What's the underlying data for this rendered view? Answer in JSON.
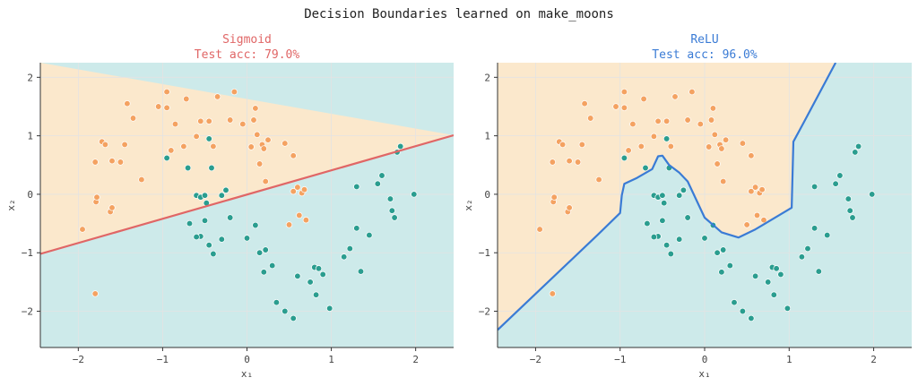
{
  "figure": {
    "title": "Decision Boundaries learned on make_moons"
  },
  "colors": {
    "class0": "#f4a261",
    "class1": "#2a9d8f",
    "region0": "#fbe8cc",
    "region1": "#cdeaea",
    "sigmoid": "#e06666",
    "relu": "#3a7bd5",
    "axis": "#333333",
    "grid": "#e3e3e3"
  },
  "chart_data": [
    {
      "type": "scatter",
      "title": "Sigmoid",
      "subtitle": "Test acc: 79.0%",
      "xlabel": "x₁",
      "ylabel": "x₂",
      "xlim": [
        -2.45,
        2.45
      ],
      "ylim": [
        -2.62,
        2.25
      ],
      "xticks": [
        -2,
        -1,
        0,
        1,
        2
      ],
      "yticks": [
        -2,
        -1,
        0,
        1,
        2
      ],
      "xtick_labels": [
        "−2",
        "−1",
        "0",
        "1",
        "2"
      ],
      "ytick_labels": [
        "−2",
        "−1",
        "0",
        "1",
        "2"
      ],
      "grid": true,
      "boundary": [
        [
          -2.45,
          -1.02
        ],
        [
          2.45,
          1.01
        ]
      ]
    },
    {
      "type": "scatter",
      "title": "ReLU",
      "subtitle": "Test acc: 96.0%",
      "xlabel": "x₁",
      "ylabel": "x₂",
      "xlim": [
        -2.45,
        2.45
      ],
      "ylim": [
        -2.62,
        2.25
      ],
      "xticks": [
        -2,
        -1,
        0,
        1,
        2
      ],
      "yticks": [
        -2,
        -1,
        0,
        1,
        2
      ],
      "xtick_labels": [
        "−2",
        "−1",
        "0",
        "1",
        "2"
      ],
      "ytick_labels": [
        "−2",
        "−1",
        "0",
        "1",
        "2"
      ],
      "grid": true,
      "boundary": [
        [
          -2.45,
          -2.32
        ],
        [
          -1.27,
          -0.7
        ],
        [
          -1.0,
          -0.32
        ],
        [
          -0.98,
          -0.02
        ],
        [
          -0.95,
          0.18
        ],
        [
          -0.8,
          0.28
        ],
        [
          -0.62,
          0.43
        ],
        [
          -0.55,
          0.65
        ],
        [
          -0.5,
          0.66
        ],
        [
          -0.42,
          0.5
        ],
        [
          -0.3,
          0.37
        ],
        [
          -0.2,
          0.22
        ],
        [
          0.0,
          -0.4
        ],
        [
          0.2,
          -0.65
        ],
        [
          0.4,
          -0.74
        ],
        [
          0.6,
          -0.6
        ],
        [
          1.03,
          -0.23
        ],
        [
          1.05,
          0.9
        ],
        [
          1.2,
          1.3
        ],
        [
          1.55,
          2.25
        ]
      ]
    }
  ],
  "points": {
    "class0": [
      [
        -1.95,
        -0.6
      ],
      [
        -1.8,
        -1.7
      ],
      [
        -1.8,
        0.55
      ],
      [
        -1.79,
        -0.13
      ],
      [
        -1.78,
        -0.05
      ],
      [
        -1.72,
        0.9
      ],
      [
        -1.68,
        0.85
      ],
      [
        -1.62,
        -0.3
      ],
      [
        -1.6,
        -0.23
      ],
      [
        -1.6,
        0.57
      ],
      [
        -1.5,
        0.55
      ],
      [
        -1.45,
        0.85
      ],
      [
        -1.42,
        1.55
      ],
      [
        -1.35,
        1.3
      ],
      [
        -1.25,
        0.25
      ],
      [
        -1.05,
        1.5
      ],
      [
        -0.95,
        1.75
      ],
      [
        -0.95,
        1.48
      ],
      [
        -0.9,
        0.75
      ],
      [
        -0.85,
        1.2
      ],
      [
        -0.75,
        0.82
      ],
      [
        -0.72,
        1.63
      ],
      [
        -0.6,
        0.99
      ],
      [
        -0.55,
        1.25
      ],
      [
        -0.45,
        1.25
      ],
      [
        -0.4,
        0.82
      ],
      [
        -0.35,
        1.67
      ],
      [
        -0.2,
        1.27
      ],
      [
        -0.15,
        1.75
      ],
      [
        -0.05,
        1.2
      ],
      [
        0.05,
        0.81
      ],
      [
        0.08,
        1.27
      ],
      [
        0.1,
        1.47
      ],
      [
        0.12,
        1.02
      ],
      [
        0.15,
        0.52
      ],
      [
        0.18,
        0.85
      ],
      [
        0.2,
        0.78
      ],
      [
        0.22,
        0.22
      ],
      [
        0.25,
        0.93
      ],
      [
        0.45,
        0.87
      ],
      [
        0.55,
        0.66
      ],
      [
        0.55,
        0.05
      ],
      [
        0.6,
        0.12
      ],
      [
        0.65,
        0.02
      ],
      [
        0.68,
        0.08
      ],
      [
        0.62,
        -0.36
      ],
      [
        0.7,
        -0.44
      ],
      [
        0.5,
        -0.52
      ]
    ],
    "class1": [
      [
        -0.95,
        0.62
      ],
      [
        -0.7,
        0.45
      ],
      [
        -0.6,
        -0.02
      ],
      [
        -0.55,
        -0.05
      ],
      [
        -0.5,
        -0.02
      ],
      [
        -0.48,
        -0.15
      ],
      [
        -0.45,
        0.95
      ],
      [
        -0.42,
        0.45
      ],
      [
        -0.3,
        -0.02
      ],
      [
        -0.25,
        0.07
      ],
      [
        -0.2,
        -0.4
      ],
      [
        -0.3,
        -0.77
      ],
      [
        -0.4,
        -1.02
      ],
      [
        -0.45,
        -0.87
      ],
      [
        -0.5,
        -0.45
      ],
      [
        -0.55,
        -0.72
      ],
      [
        -0.68,
        -0.5
      ],
      [
        -0.6,
        -0.73
      ],
      [
        0.0,
        -0.75
      ],
      [
        0.1,
        -0.53
      ],
      [
        0.15,
        -1.0
      ],
      [
        0.2,
        -1.33
      ],
      [
        0.22,
        -0.95
      ],
      [
        0.3,
        -1.22
      ],
      [
        0.35,
        -1.85
      ],
      [
        0.45,
        -2.0
      ],
      [
        0.55,
        -2.12
      ],
      [
        0.6,
        -1.4
      ],
      [
        0.75,
        -1.5
      ],
      [
        0.8,
        -1.25
      ],
      [
        0.85,
        -1.27
      ],
      [
        0.9,
        -1.37
      ],
      [
        0.82,
        -1.72
      ],
      [
        0.98,
        -1.95
      ],
      [
        1.15,
        -1.07
      ],
      [
        1.22,
        -0.93
      ],
      [
        1.3,
        -0.58
      ],
      [
        1.35,
        -1.32
      ],
      [
        1.45,
        -0.7
      ],
      [
        1.3,
        0.13
      ],
      [
        1.55,
        0.18
      ],
      [
        1.6,
        0.32
      ],
      [
        1.7,
        -0.08
      ],
      [
        1.72,
        -0.28
      ],
      [
        1.75,
        -0.4
      ],
      [
        1.78,
        0.72
      ],
      [
        1.82,
        0.82
      ],
      [
        1.98,
        0.0
      ]
    ]
  }
}
